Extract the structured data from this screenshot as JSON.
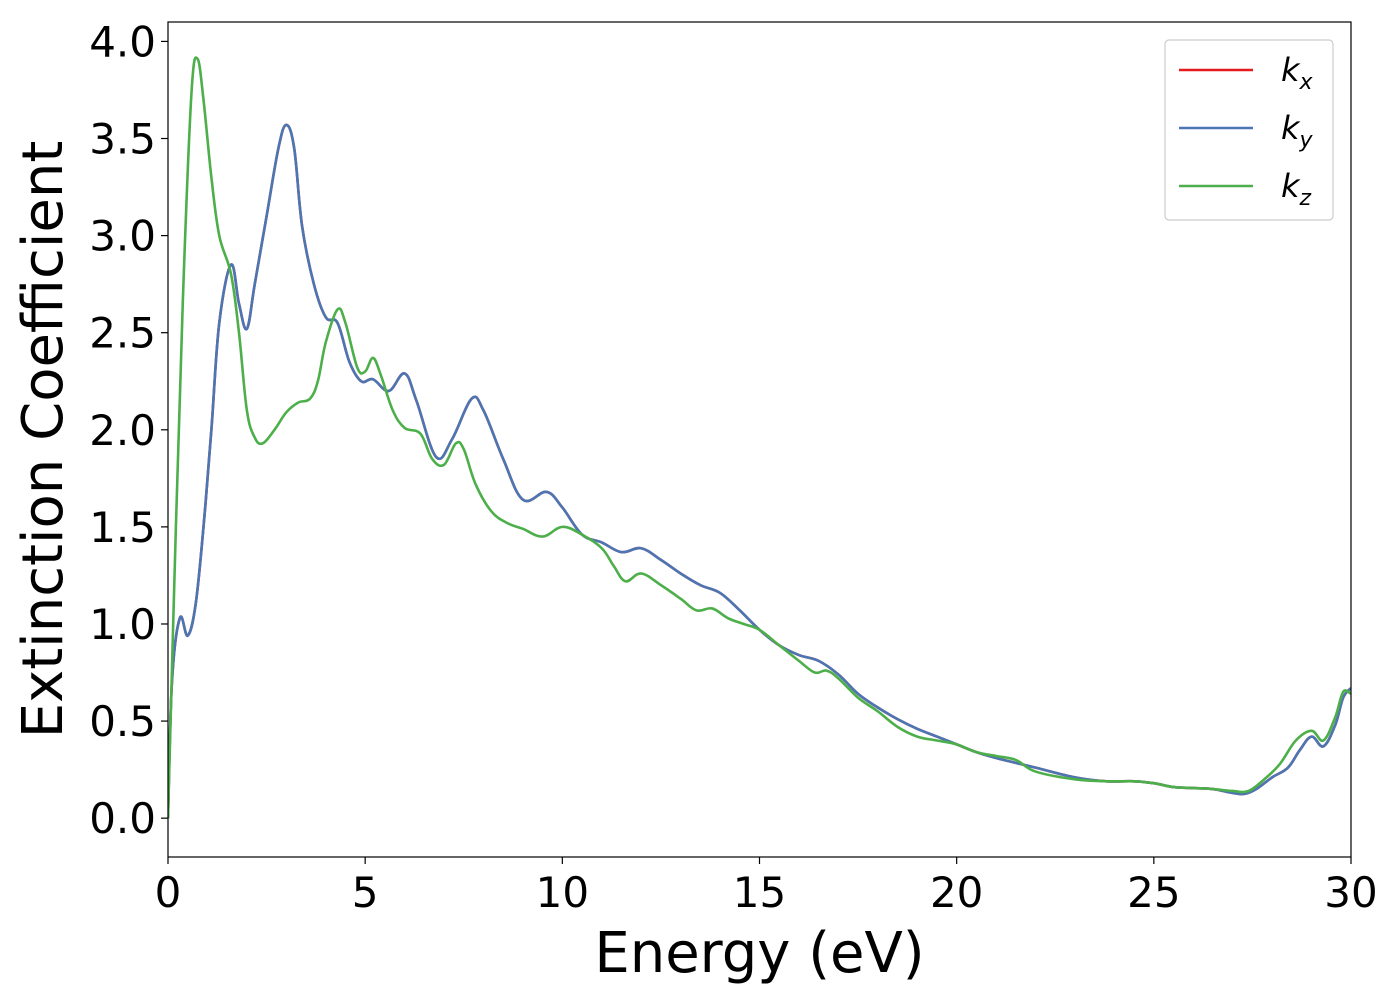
{
  "chart_data": {
    "type": "line",
    "title": "",
    "xlabel": "Energy (eV)",
    "ylabel": "Extinction Coefficient",
    "xlim": [
      0,
      30
    ],
    "ylim": [
      -0.2,
      4.1
    ],
    "xticks": [
      0,
      5,
      10,
      15,
      20,
      25,
      30
    ],
    "yticks": [
      0.0,
      0.5,
      1.0,
      1.5,
      2.0,
      2.5,
      3.0,
      3.5,
      4.0
    ],
    "xtick_labels": [
      "0",
      "5",
      "10",
      "15",
      "20",
      "25",
      "30"
    ],
    "ytick_labels": [
      "0.0",
      "0.5",
      "1.0",
      "1.5",
      "2.0",
      "2.5",
      "3.0",
      "3.5",
      "4.0"
    ],
    "grid": false,
    "legend": "upper right",
    "series": [
      {
        "name": "k_x",
        "legend_main": "k",
        "legend_sub": "x",
        "color": "#e41a1c",
        "points": [
          [
            0,
            0.0
          ],
          [
            0.1,
            0.7
          ],
          [
            0.3,
            1.03
          ],
          [
            0.5,
            0.94
          ],
          [
            0.7,
            1.1
          ],
          [
            0.9,
            1.5
          ],
          [
            1.1,
            2.0
          ],
          [
            1.3,
            2.55
          ],
          [
            1.6,
            2.85
          ],
          [
            1.8,
            2.65
          ],
          [
            2.0,
            2.52
          ],
          [
            2.2,
            2.75
          ],
          [
            2.5,
            3.1
          ],
          [
            2.8,
            3.45
          ],
          [
            3.0,
            3.57
          ],
          [
            3.2,
            3.45
          ],
          [
            3.4,
            3.05
          ],
          [
            3.7,
            2.75
          ],
          [
            4.0,
            2.58
          ],
          [
            4.3,
            2.55
          ],
          [
            4.6,
            2.35
          ],
          [
            4.9,
            2.25
          ],
          [
            5.2,
            2.26
          ],
          [
            5.6,
            2.2
          ],
          [
            6.0,
            2.29
          ],
          [
            6.3,
            2.15
          ],
          [
            6.8,
            1.86
          ],
          [
            7.2,
            1.95
          ],
          [
            7.7,
            2.16
          ],
          [
            8.0,
            2.1
          ],
          [
            8.5,
            1.85
          ],
          [
            9.0,
            1.64
          ],
          [
            9.6,
            1.68
          ],
          [
            10.0,
            1.6
          ],
          [
            10.5,
            1.46
          ],
          [
            11.0,
            1.42
          ],
          [
            11.5,
            1.37
          ],
          [
            12.0,
            1.39
          ],
          [
            12.5,
            1.33
          ],
          [
            13.0,
            1.26
          ],
          [
            13.5,
            1.2
          ],
          [
            14.0,
            1.16
          ],
          [
            14.5,
            1.07
          ],
          [
            15.0,
            0.97
          ],
          [
            15.5,
            0.89
          ],
          [
            16.0,
            0.84
          ],
          [
            16.5,
            0.81
          ],
          [
            17.0,
            0.74
          ],
          [
            17.5,
            0.64
          ],
          [
            18.0,
            0.57
          ],
          [
            18.5,
            0.51
          ],
          [
            19.0,
            0.46
          ],
          [
            19.5,
            0.42
          ],
          [
            20.0,
            0.38
          ],
          [
            20.5,
            0.34
          ],
          [
            21.0,
            0.31
          ],
          [
            22.0,
            0.26
          ],
          [
            23.0,
            0.21
          ],
          [
            23.8,
            0.19
          ],
          [
            24.5,
            0.19
          ],
          [
            25.0,
            0.18
          ],
          [
            25.5,
            0.16
          ],
          [
            26.0,
            0.155
          ],
          [
            26.5,
            0.15
          ],
          [
            27.0,
            0.13
          ],
          [
            27.3,
            0.125
          ],
          [
            27.6,
            0.15
          ],
          [
            28.0,
            0.21
          ],
          [
            28.4,
            0.26
          ],
          [
            28.7,
            0.35
          ],
          [
            29.0,
            0.42
          ],
          [
            29.3,
            0.37
          ],
          [
            29.6,
            0.48
          ],
          [
            29.8,
            0.62
          ],
          [
            30.0,
            0.67
          ]
        ]
      },
      {
        "name": "k_y",
        "legend_main": "k",
        "legend_sub": "y",
        "color": "#4a77b4",
        "points": [
          [
            0,
            0.0
          ],
          [
            0.1,
            0.7
          ],
          [
            0.3,
            1.03
          ],
          [
            0.5,
            0.94
          ],
          [
            0.7,
            1.1
          ],
          [
            0.9,
            1.5
          ],
          [
            1.1,
            2.0
          ],
          [
            1.3,
            2.55
          ],
          [
            1.6,
            2.85
          ],
          [
            1.8,
            2.65
          ],
          [
            2.0,
            2.52
          ],
          [
            2.2,
            2.75
          ],
          [
            2.5,
            3.1
          ],
          [
            2.8,
            3.45
          ],
          [
            3.0,
            3.57
          ],
          [
            3.2,
            3.45
          ],
          [
            3.4,
            3.05
          ],
          [
            3.7,
            2.75
          ],
          [
            4.0,
            2.58
          ],
          [
            4.3,
            2.55
          ],
          [
            4.6,
            2.35
          ],
          [
            4.9,
            2.25
          ],
          [
            5.2,
            2.26
          ],
          [
            5.6,
            2.2
          ],
          [
            6.0,
            2.29
          ],
          [
            6.3,
            2.15
          ],
          [
            6.8,
            1.86
          ],
          [
            7.2,
            1.95
          ],
          [
            7.7,
            2.16
          ],
          [
            8.0,
            2.1
          ],
          [
            8.5,
            1.85
          ],
          [
            9.0,
            1.64
          ],
          [
            9.6,
            1.68
          ],
          [
            10.0,
            1.6
          ],
          [
            10.5,
            1.46
          ],
          [
            11.0,
            1.42
          ],
          [
            11.5,
            1.37
          ],
          [
            12.0,
            1.39
          ],
          [
            12.5,
            1.33
          ],
          [
            13.0,
            1.26
          ],
          [
            13.5,
            1.2
          ],
          [
            14.0,
            1.16
          ],
          [
            14.5,
            1.07
          ],
          [
            15.0,
            0.97
          ],
          [
            15.5,
            0.89
          ],
          [
            16.0,
            0.84
          ],
          [
            16.5,
            0.81
          ],
          [
            17.0,
            0.74
          ],
          [
            17.5,
            0.64
          ],
          [
            18.0,
            0.57
          ],
          [
            18.5,
            0.51
          ],
          [
            19.0,
            0.46
          ],
          [
            19.5,
            0.42
          ],
          [
            20.0,
            0.38
          ],
          [
            20.5,
            0.34
          ],
          [
            21.0,
            0.31
          ],
          [
            22.0,
            0.26
          ],
          [
            23.0,
            0.21
          ],
          [
            23.8,
            0.19
          ],
          [
            24.5,
            0.19
          ],
          [
            25.0,
            0.18
          ],
          [
            25.5,
            0.16
          ],
          [
            26.0,
            0.155
          ],
          [
            26.5,
            0.15
          ],
          [
            27.0,
            0.13
          ],
          [
            27.3,
            0.125
          ],
          [
            27.6,
            0.15
          ],
          [
            28.0,
            0.21
          ],
          [
            28.4,
            0.26
          ],
          [
            28.7,
            0.35
          ],
          [
            29.0,
            0.42
          ],
          [
            29.3,
            0.37
          ],
          [
            29.6,
            0.48
          ],
          [
            29.8,
            0.62
          ],
          [
            30.0,
            0.67
          ]
        ]
      },
      {
        "name": "k_z",
        "legend_main": "k",
        "legend_sub": "z",
        "color": "#4daf4a",
        "points": [
          [
            0,
            0.0
          ],
          [
            0.2,
            1.5
          ],
          [
            0.4,
            2.8
          ],
          [
            0.6,
            3.75
          ],
          [
            0.75,
            3.91
          ],
          [
            0.9,
            3.7
          ],
          [
            1.1,
            3.3
          ],
          [
            1.3,
            3.0
          ],
          [
            1.6,
            2.8
          ],
          [
            1.8,
            2.5
          ],
          [
            2.0,
            2.1
          ],
          [
            2.2,
            1.96
          ],
          [
            2.4,
            1.93
          ],
          [
            2.7,
            2.0
          ],
          [
            3.0,
            2.09
          ],
          [
            3.3,
            2.14
          ],
          [
            3.6,
            2.16
          ],
          [
            3.8,
            2.25
          ],
          [
            4.0,
            2.45
          ],
          [
            4.3,
            2.62
          ],
          [
            4.5,
            2.55
          ],
          [
            4.8,
            2.32
          ],
          [
            5.0,
            2.3
          ],
          [
            5.2,
            2.37
          ],
          [
            5.4,
            2.28
          ],
          [
            5.7,
            2.1
          ],
          [
            6.0,
            2.01
          ],
          [
            6.4,
            1.98
          ],
          [
            6.7,
            1.85
          ],
          [
            7.0,
            1.82
          ],
          [
            7.3,
            1.93
          ],
          [
            7.5,
            1.9
          ],
          [
            7.8,
            1.72
          ],
          [
            8.2,
            1.58
          ],
          [
            8.6,
            1.52
          ],
          [
            9.0,
            1.49
          ],
          [
            9.5,
            1.45
          ],
          [
            10.0,
            1.5
          ],
          [
            10.5,
            1.46
          ],
          [
            11.0,
            1.39
          ],
          [
            11.3,
            1.3
          ],
          [
            11.6,
            1.22
          ],
          [
            12.0,
            1.26
          ],
          [
            12.5,
            1.2
          ],
          [
            13.0,
            1.13
          ],
          [
            13.4,
            1.07
          ],
          [
            13.8,
            1.08
          ],
          [
            14.2,
            1.03
          ],
          [
            14.6,
            1.0
          ],
          [
            15.0,
            0.97
          ],
          [
            15.5,
            0.89
          ],
          [
            16.0,
            0.81
          ],
          [
            16.4,
            0.75
          ],
          [
            16.7,
            0.76
          ],
          [
            17.0,
            0.72
          ],
          [
            17.5,
            0.62
          ],
          [
            18.0,
            0.55
          ],
          [
            18.5,
            0.47
          ],
          [
            19.0,
            0.42
          ],
          [
            19.5,
            0.4
          ],
          [
            20.0,
            0.38
          ],
          [
            20.5,
            0.34
          ],
          [
            21.0,
            0.32
          ],
          [
            21.5,
            0.3
          ],
          [
            22.0,
            0.24
          ],
          [
            23.0,
            0.2
          ],
          [
            23.8,
            0.19
          ],
          [
            24.5,
            0.19
          ],
          [
            25.0,
            0.18
          ],
          [
            25.5,
            0.16
          ],
          [
            26.0,
            0.155
          ],
          [
            26.5,
            0.15
          ],
          [
            27.0,
            0.14
          ],
          [
            27.4,
            0.14
          ],
          [
            27.8,
            0.2
          ],
          [
            28.2,
            0.28
          ],
          [
            28.6,
            0.4
          ],
          [
            29.0,
            0.45
          ],
          [
            29.3,
            0.4
          ],
          [
            29.6,
            0.52
          ],
          [
            29.8,
            0.65
          ],
          [
            30.0,
            0.64
          ]
        ]
      }
    ]
  }
}
